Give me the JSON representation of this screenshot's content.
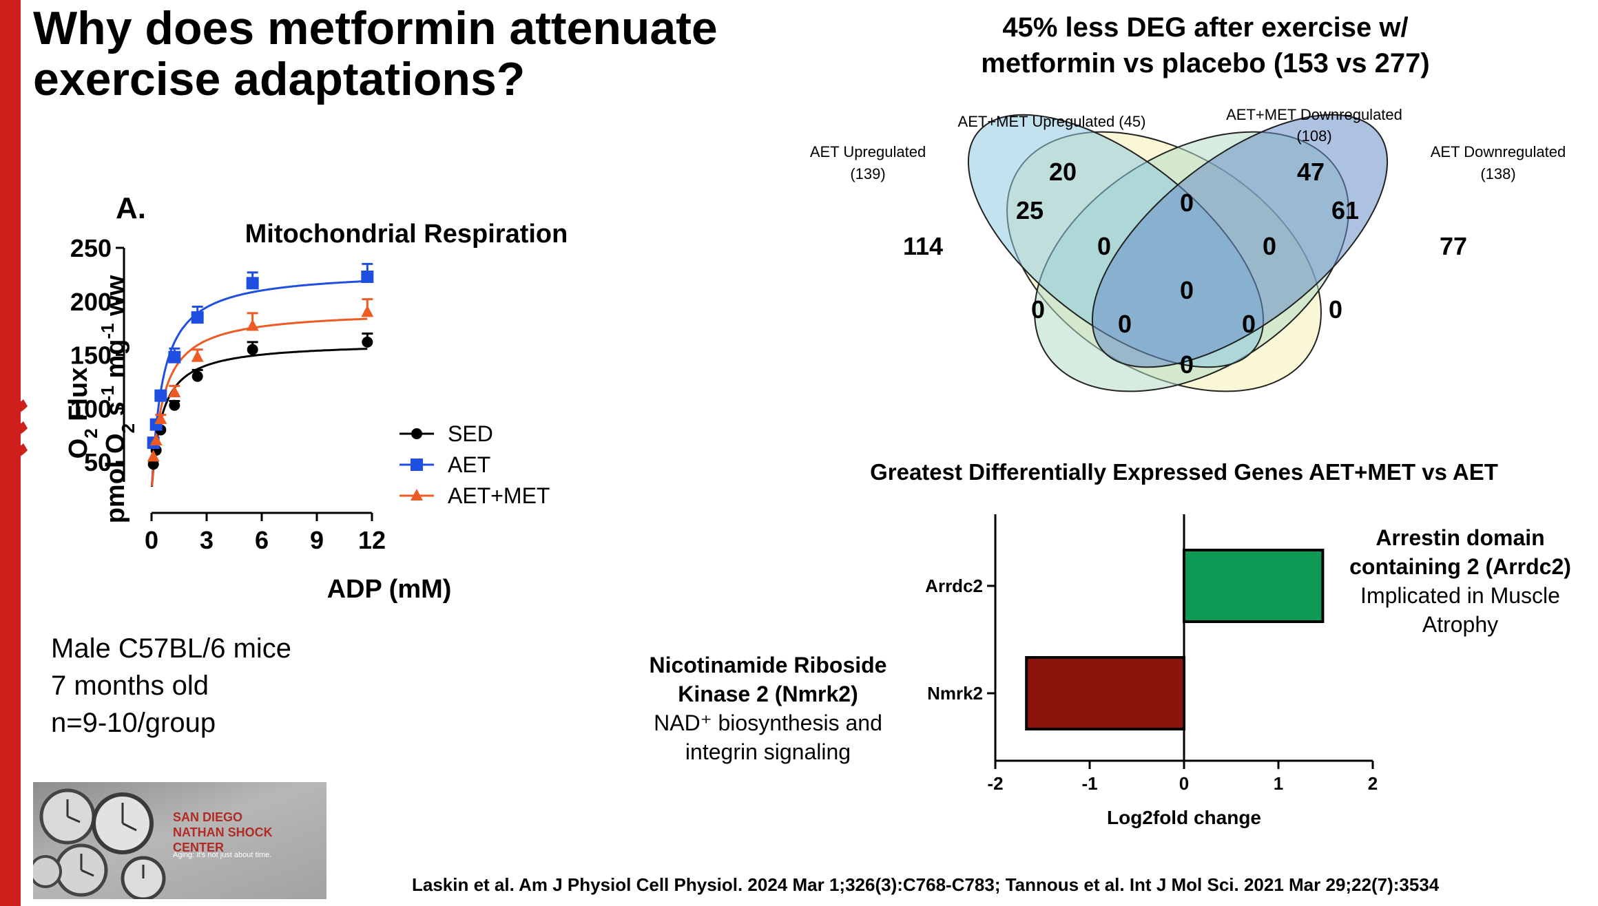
{
  "slide": {
    "title_line1": "Why does metformin attenuate",
    "title_line2": "exercise adaptations?",
    "panel_letter": "A.",
    "mice_info": [
      "Male C57BL/6 mice",
      "7 months old",
      "n=9-10/group"
    ],
    "logo": {
      "line1": "SAN DIEGO",
      "line2": "NATHAN SHOCK CENTER",
      "tagline": "Aging: it's not just about time."
    },
    "citation": "Laskin et al. Am J Physiol Cell Physiol.  2024 Mar 1;326(3):C768-C783; Tannous et al.  Int J Mol Sci. 2021 Mar 29;22(7):3534",
    "colors": {
      "accent_bar": "#d0201b"
    }
  },
  "chart_data": [
    {
      "type": "line",
      "title": "Mitochondrial Respiration",
      "xlabel": "ADP  (mM)",
      "ylabel_line1": "O2 Flux",
      "ylabel_line2": "pmol O2 s-1 mg-1 ww",
      "xlim": [
        0,
        12
      ],
      "ylim": [
        25,
        250
      ],
      "xticks": [
        "0",
        "3",
        "6",
        "9",
        "12"
      ],
      "yticks": [
        "50",
        "100",
        "150",
        "200",
        "250"
      ],
      "legend_position": "bottom-right",
      "series": [
        {
          "name": "SED",
          "color": "#000000",
          "marker": "circle",
          "x": [
            0.1,
            0.25,
            0.5,
            1.25,
            2.5,
            5.5,
            11.75
          ],
          "y": [
            48,
            61,
            80,
            103,
            130,
            155,
            162
          ],
          "err": [
            0,
            0,
            0,
            4,
            6,
            7,
            8
          ],
          "fit": {
            "vmax": 162,
            "km": 0.55,
            "c0": 22
          }
        },
        {
          "name": "AET",
          "color": "#1f4fe0",
          "marker": "square",
          "x": [
            0.1,
            0.25,
            0.5,
            1.25,
            2.5,
            5.5,
            11.75
          ],
          "y": [
            68,
            85,
            112,
            148,
            185,
            217,
            223
          ],
          "err": [
            0,
            0,
            4,
            8,
            10,
            10,
            12
          ],
          "fit": {
            "vmax": 229,
            "km": 0.6,
            "c0": 22
          }
        },
        {
          "name": "AET+MET",
          "color": "#ee5a24",
          "marker": "triangle",
          "x": [
            0.1,
            0.25,
            0.5,
            1.25,
            2.5,
            5.5,
            11.75
          ],
          "y": [
            55,
            70,
            90,
            115,
            148,
            177,
            190
          ],
          "err": [
            0,
            0,
            4,
            6,
            7,
            12,
            12
          ],
          "fit": {
            "vmax": 192,
            "km": 0.6,
            "c0": 22
          }
        }
      ]
    },
    {
      "type": "venn",
      "title_line1": "45% less DEG after exercise w/",
      "title_line2": "metformin vs placebo (153 vs 277)",
      "sets": [
        {
          "label_line1": "AET Upregulated",
          "label_line2": "(139)",
          "color": "#f8f6d2"
        },
        {
          "label_line1": "AET+MET Upregulated (45)",
          "label_line2": "",
          "color": "#8fcbe2"
        },
        {
          "label_line1": "AET+MET Downregulated",
          "label_line2": "(108)",
          "color": "#6a8fc8"
        },
        {
          "label_line1": "AET Downregulated",
          "label_line2": "(138)",
          "color": "#b5ddc6"
        }
      ],
      "region_counts": [
        "114",
        "20",
        "47",
        "77",
        "25",
        "0",
        "61",
        "0",
        "0",
        "0",
        "0",
        "0",
        "0",
        "0",
        "0"
      ]
    },
    {
      "type": "bar",
      "orientation": "horizontal",
      "title": "Greatest Differentially Expressed Genes AET+MET vs AET",
      "xlabel": "Log2fold change",
      "xlim": [
        -2,
        2
      ],
      "xticks": [
        "-2",
        "-1",
        "0",
        "1",
        "2"
      ],
      "categories": [
        "Arrdc2",
        "Nmrk2"
      ],
      "values": [
        1.47,
        -1.67
      ],
      "colors": [
        "#0c9a55",
        "#8d130d"
      ],
      "annotations": [
        {
          "name_line1": "Arrestin domain",
          "name_line2": "containing 2 (Arrdc2)",
          "note_line1": "Implicated in Muscle",
          "note_line2": "Atrophy"
        },
        {
          "name_line1": "Nicotinamide Riboside",
          "name_line2": "Kinase 2 (Nmrk2)",
          "note_line1": "NAD⁺ biosynthesis and",
          "note_line2": "integrin signaling"
        }
      ]
    }
  ]
}
